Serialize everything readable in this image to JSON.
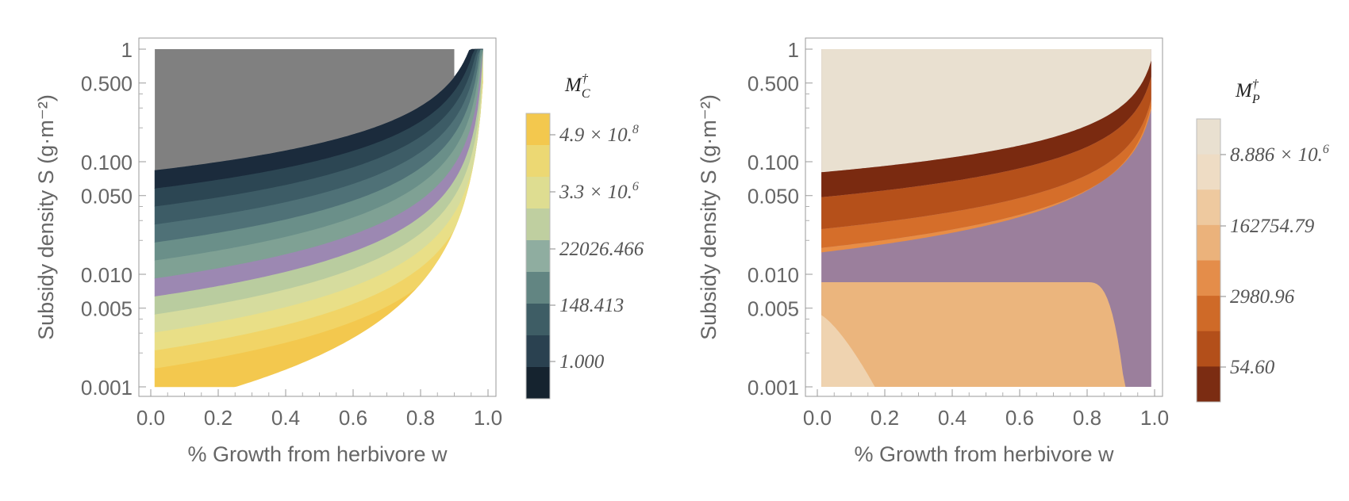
{
  "chart_data": [
    {
      "type": "heatmap",
      "xlabel": "% Growth from herbivore w",
      "ylabel": "Subsidy density S (g·m⁻²)",
      "x_ticks": [
        "0.0",
        "0.2",
        "0.4",
        "0.6",
        "0.8",
        "1.0"
      ],
      "y_ticks": [
        {
          "value": 1,
          "label": "1"
        },
        {
          "value": 0.5,
          "label": "0.500"
        },
        {
          "value": 0.1,
          "label": "0.100"
        },
        {
          "value": 0.05,
          "label": "0.050"
        },
        {
          "value": 0.01,
          "label": "0.010"
        },
        {
          "value": 0.005,
          "label": "0.005"
        },
        {
          "value": 0.001,
          "label": "0.001"
        }
      ],
      "x_range": [
        0,
        1
      ],
      "y_range": [
        0.001,
        1
      ],
      "y_scale": "log",
      "legend_title": "M",
      "legend_title_sub": "C",
      "legend_title_sup": "†",
      "legend_labels": [
        "4.9 × 10.8",
        "3.3 × 10.6",
        "22026.466",
        "148.413",
        "1.000"
      ],
      "colors": {
        "gray_region": "#808080",
        "bands": [
          "#f3c84e",
          "#f1d466",
          "#e9df87",
          "#d6dc9e",
          "#b9cc9f",
          "#9c88b2",
          "#7fa194",
          "#6a8f89",
          "#4f7177",
          "#3d5c66",
          "#2c4653",
          "#1b2b3c"
        ],
        "legend_bands": [
          "#f3c84e",
          "#ecd873",
          "#dedd91",
          "#bfcfa0",
          "#8fada0",
          "#628582",
          "#3e5d65",
          "#2a4150",
          "#15232f"
        ]
      }
    },
    {
      "type": "heatmap",
      "xlabel": "% Growth from herbivore w",
      "ylabel": "Subsidy density S (g·m⁻²)",
      "x_ticks": [
        "0.0",
        "0.2",
        "0.4",
        "0.6",
        "0.8",
        "1.0"
      ],
      "y_ticks": [
        {
          "value": 1,
          "label": "1"
        },
        {
          "value": 0.5,
          "label": "0.500"
        },
        {
          "value": 0.1,
          "label": "0.100"
        },
        {
          "value": 0.05,
          "label": "0.050"
        },
        {
          "value": 0.01,
          "label": "0.010"
        },
        {
          "value": 0.005,
          "label": "0.005"
        },
        {
          "value": 0.001,
          "label": "0.001"
        }
      ],
      "x_range": [
        0,
        1
      ],
      "y_range": [
        0.001,
        1
      ],
      "y_scale": "log",
      "legend_title": "M",
      "legend_title_sub": "P",
      "legend_title_sup": "†",
      "legend_labels": [
        "8.886 × 10.6",
        "162754.79",
        "2980.96",
        "54.60"
      ],
      "colors": {
        "top_region": "#e9e0d0",
        "bands": [
          "#7a2a10",
          "#b5501a",
          "#d56e2a",
          "#e88d45"
        ],
        "purple_region": "#9b7f9c",
        "lower_region": "#ebb57d",
        "corner_region": "#efd3b0",
        "legend_bands": [
          "#e9e0d0",
          "#eedcc4",
          "#eec99f",
          "#ebb27b",
          "#e48d4a",
          "#cf6a28",
          "#b34f1a",
          "#7b2c12"
        ]
      }
    }
  ]
}
